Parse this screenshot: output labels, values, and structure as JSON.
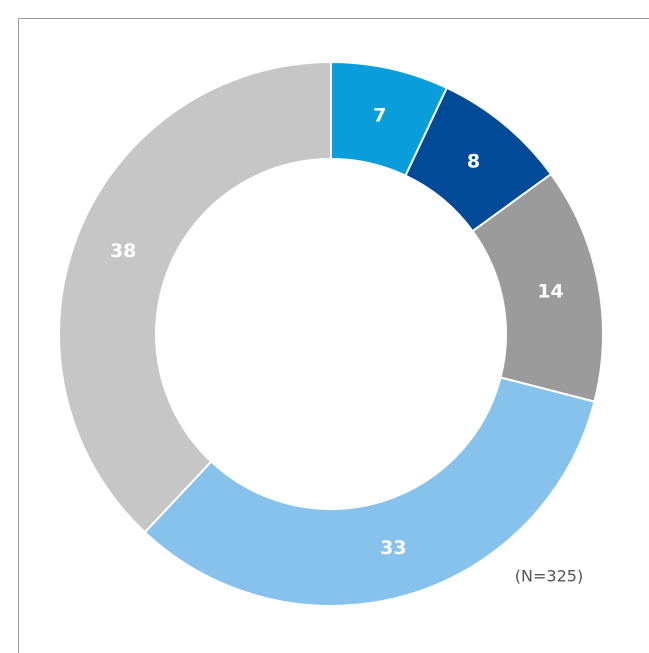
{
  "chart_data": {
    "type": "donut",
    "values": [
      7,
      8,
      14,
      33,
      38
    ],
    "colors": [
      "#0a9ddb",
      "#004a98",
      "#9b9b9b",
      "#86c2eb",
      "#c5c6c5"
    ],
    "annotation": "(N=325)"
  }
}
